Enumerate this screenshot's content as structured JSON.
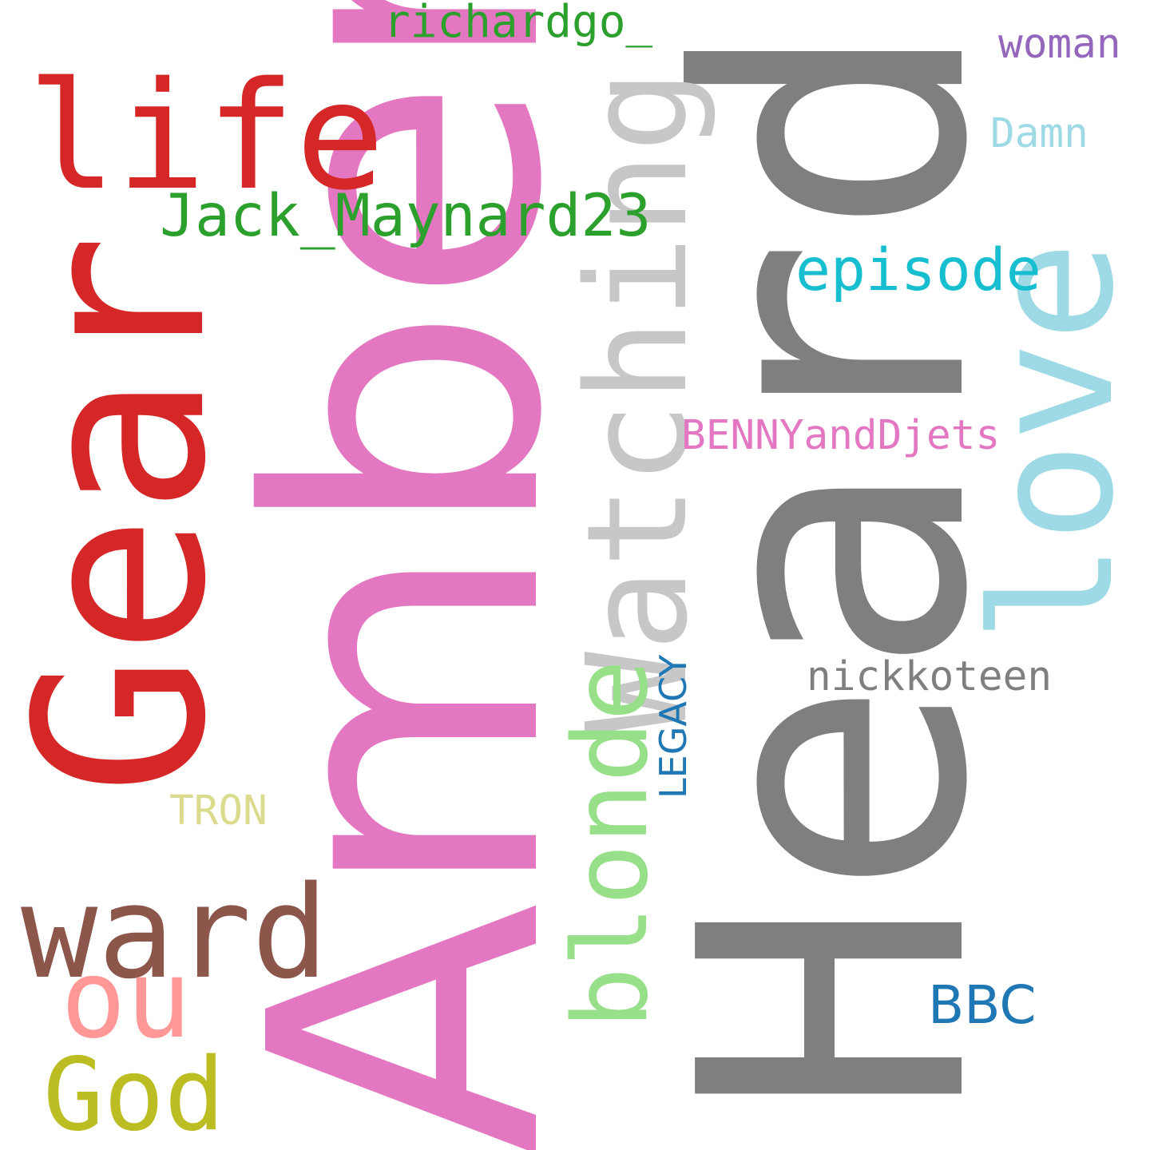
{
  "words": {
    "heard": {
      "text": "Heard",
      "color": "#7f7f7f"
    },
    "amber": {
      "text": "Amber",
      "color": "#e377c2"
    },
    "gear": {
      "text": "Gear",
      "color": "#d62728"
    },
    "watching": {
      "text": "Watching",
      "color": "#c7c7c7"
    },
    "love": {
      "text": "love",
      "color": "#9edae5"
    },
    "life": {
      "text": "life",
      "color": "#d62728"
    },
    "blonde": {
      "text": "blonde",
      "color": "#98df8a"
    },
    "ward": {
      "text": "ward",
      "color": "#8c564b"
    },
    "jack": {
      "text": "Jack_Maynard23",
      "color": "#2ca02c"
    },
    "episode": {
      "text": "episode",
      "color": "#17becf"
    },
    "god": {
      "text": "God",
      "color": "#bcbd22"
    },
    "ou": {
      "text": "ou",
      "color": "#ff9896"
    },
    "richard": {
      "text": "richardgo_",
      "color": "#2ca02c"
    },
    "benny": {
      "text": "BENNYandDjets",
      "color": "#e377c2"
    },
    "nick": {
      "text": "nickkoteen",
      "color": "#7f7f7f"
    },
    "bbc": {
      "text": "BBC",
      "color": "#1f77b4"
    },
    "legacy": {
      "text": "LEGACY",
      "color": "#1f77b4"
    },
    "woman": {
      "text": "woman",
      "color": "#9467bd"
    },
    "damn": {
      "text": "Damn",
      "color": "#9edae5"
    },
    "tron": {
      "text": "TRON",
      "color": "#dbdb8d"
    }
  }
}
